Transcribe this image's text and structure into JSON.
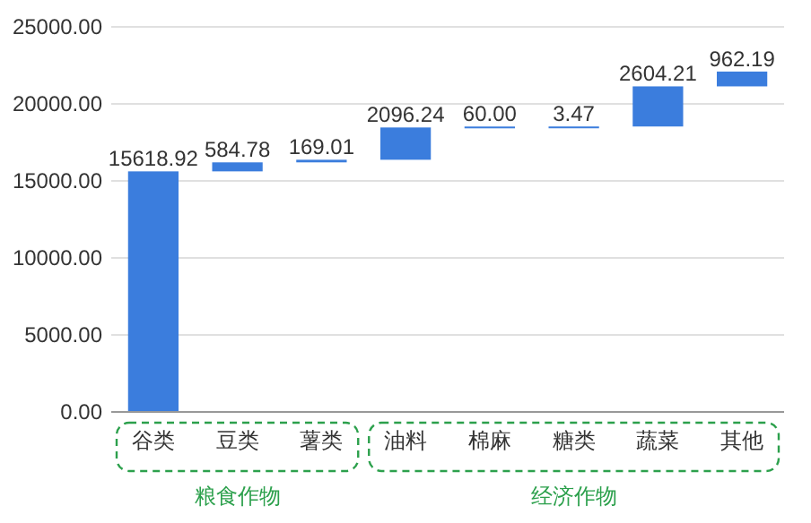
{
  "chart_data": {
    "type": "bar",
    "categories": [
      "谷类",
      "豆类",
      "薯类",
      "油料",
      "棉麻",
      "糖类",
      "蔬菜",
      "其他"
    ],
    "values": [
      15618.92,
      584.78,
      169.01,
      2096.24,
      60.0,
      3.47,
      2604.21,
      962.19
    ],
    "base": [
      0,
      15618.92,
      16203.7,
      16372.71,
      18468.95,
      18528.95,
      18532.42,
      21136.63
    ],
    "value_labels": [
      "15618.92",
      "584.78",
      "169.01",
      "2096.24",
      "60.00",
      "3.47",
      "2604.21",
      "962.19"
    ],
    "color": "#3b7ddd",
    "ylim": [
      0,
      25000
    ],
    "yticks": [
      {
        "value": 0,
        "label": "0.00"
      },
      {
        "value": 5000,
        "label": "5000.00"
      },
      {
        "value": 10000,
        "label": "10000.00"
      },
      {
        "value": 15000,
        "label": "15000.00"
      },
      {
        "value": 20000,
        "label": "20000.00"
      },
      {
        "value": 25000,
        "label": "25000.00"
      }
    ],
    "grid": "y",
    "annotations": [
      "粮食作物",
      "经济作物"
    ]
  }
}
